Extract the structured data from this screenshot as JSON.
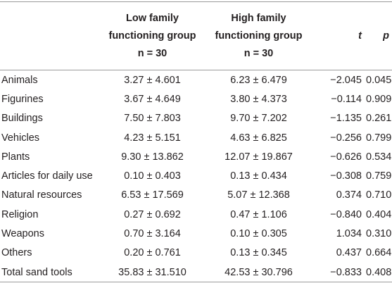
{
  "table": {
    "header": [
      [
        ""
      ],
      [
        "Low family",
        "functioning group",
        "n = 30"
      ],
      [
        "High family",
        "functioning group",
        "n = 30"
      ],
      [
        "t"
      ],
      [
        "p"
      ]
    ],
    "rows": [
      [
        "Animals",
        "3.27 ± 4.601",
        "6.23 ± 6.479",
        "−2.045",
        "0.045"
      ],
      [
        "Figurines",
        "3.67 ± 4.649",
        "3.80 ± 4.373",
        "−0.114",
        "0.909"
      ],
      [
        "Buildings",
        "7.50 ± 7.803",
        "9.70 ± 7.202",
        "−1.135",
        "0.261"
      ],
      [
        "Vehicles",
        "4.23 ± 5.151",
        "4.63 ± 6.825",
        "−0.256",
        "0.799"
      ],
      [
        "Plants",
        "9.30 ± 13.862",
        "12.07 ± 19.867",
        "−0.626",
        "0.534"
      ],
      [
        "Articles for daily use",
        "0.10 ± 0.403",
        "0.13 ± 0.434",
        "−0.308",
        "0.759"
      ],
      [
        "Natural resources",
        "6.53 ± 17.569",
        "5.07 ± 12.368",
        "0.374",
        "0.710"
      ],
      [
        "Religion",
        "0.27 ± 0.692",
        "0.47 ± 1.106",
        "−0.840",
        "0.404"
      ],
      [
        "Weapons",
        "0.70 ± 3.164",
        "0.10 ± 0.305",
        "1.034",
        "0.310"
      ],
      [
        "Others",
        "0.20 ± 0.761",
        "0.13 ± 0.345",
        "0.437",
        "0.664"
      ],
      [
        "Total sand tools",
        "35.83 ± 31.510",
        "42.53 ± 30.796",
        "−0.833",
        "0.408"
      ]
    ]
  }
}
